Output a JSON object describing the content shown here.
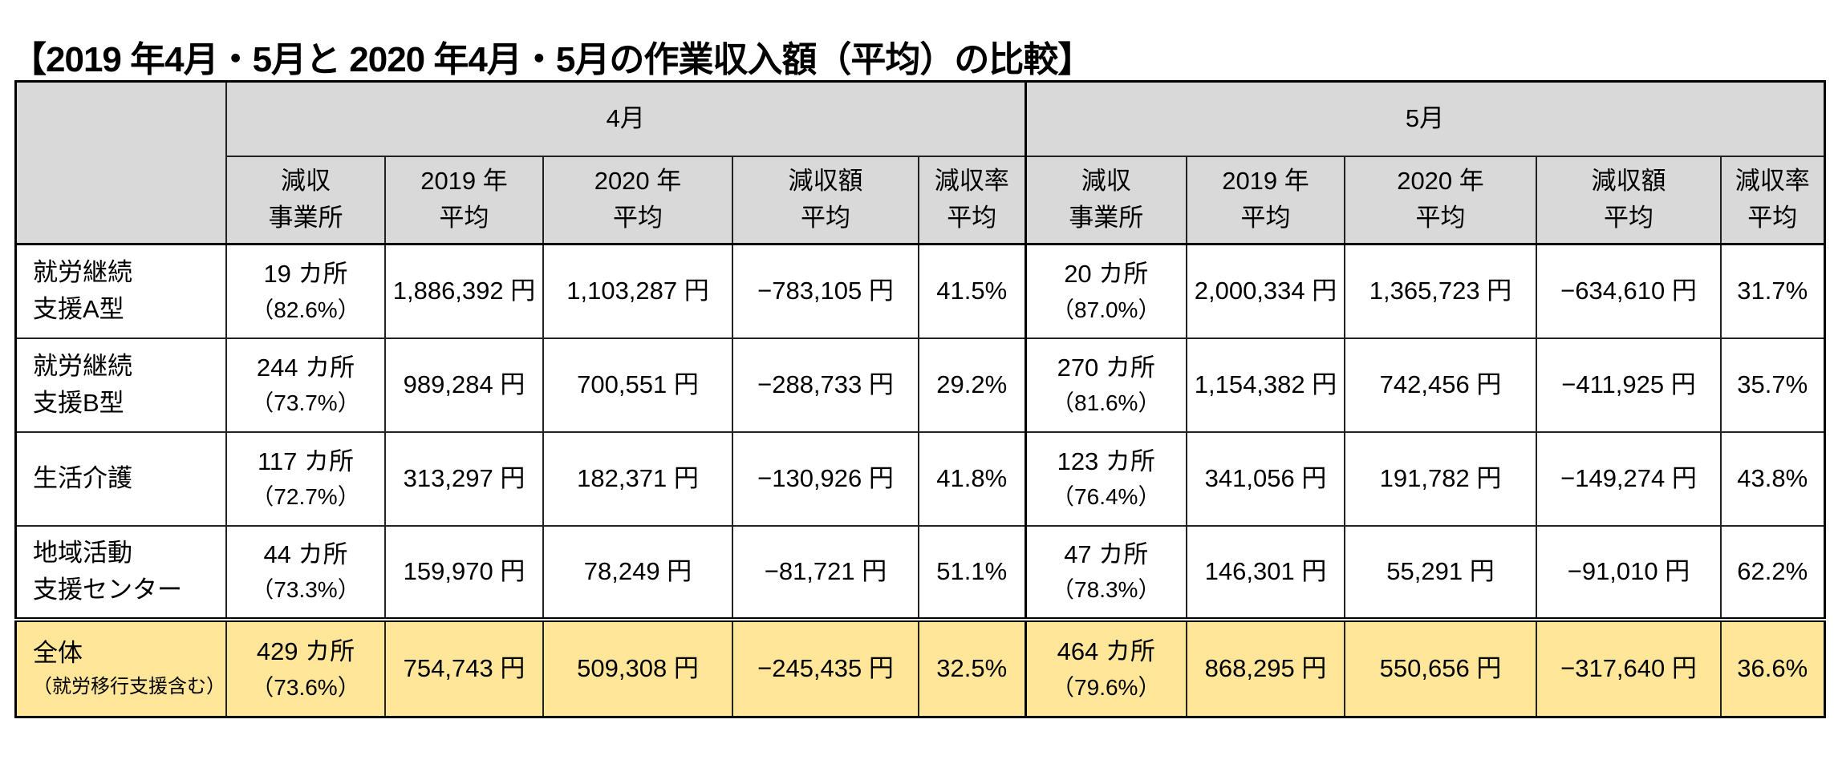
{
  "title": "【2019 年4月・5月と 2020 年4月・5月の作業収入額（平均）の比較】",
  "months": [
    "4月",
    "5月"
  ],
  "column_headers": [
    [
      "減収",
      "事業所"
    ],
    [
      "2019 年",
      "平均"
    ],
    [
      "2020 年",
      "平均"
    ],
    [
      "減収額",
      "平均"
    ],
    [
      "減収率",
      "平均"
    ]
  ],
  "rows": [
    {
      "label": [
        "就労継続",
        "支援A型"
      ],
      "apr": {
        "count": "19 カ所",
        "pct": "（82.6%）",
        "y2019": "1,886,392 円",
        "y2020": "1,103,287 円",
        "diff": "−783,105 円",
        "rate": "41.5%"
      },
      "may": {
        "count": "20 カ所",
        "pct": "（87.0%）",
        "y2019": "2,000,334 円",
        "y2020": "1,365,723 円",
        "diff": "−634,610 円",
        "rate": "31.7%"
      }
    },
    {
      "label": [
        "就労継続",
        "支援B型"
      ],
      "apr": {
        "count": "244 カ所",
        "pct": "（73.7%）",
        "y2019": "989,284 円",
        "y2020": "700,551 円",
        "diff": "−288,733 円",
        "rate": "29.2%"
      },
      "may": {
        "count": "270 カ所",
        "pct": "（81.6%）",
        "y2019": "1,154,382 円",
        "y2020": "742,456 円",
        "diff": "−411,925 円",
        "rate": "35.7%"
      }
    },
    {
      "label": [
        "生活介護",
        ""
      ],
      "apr": {
        "count": "117 カ所",
        "pct": "（72.7%）",
        "y2019": "313,297 円",
        "y2020": "182,371 円",
        "diff": "−130,926 円",
        "rate": "41.8%"
      },
      "may": {
        "count": "123 カ所",
        "pct": "（76.4%）",
        "y2019": "341,056 円",
        "y2020": "191,782 円",
        "diff": "−149,274 円",
        "rate": "43.8%"
      }
    },
    {
      "label": [
        "地域活動",
        "支援センター"
      ],
      "apr": {
        "count": "44 カ所",
        "pct": "（73.3%）",
        "y2019": "159,970 円",
        "y2020": "78,249 円",
        "diff": "−81,721 円",
        "rate": "51.1%"
      },
      "may": {
        "count": "47 カ所",
        "pct": "（78.3%）",
        "y2019": "146,301 円",
        "y2020": "55,291 円",
        "diff": "−91,010 円",
        "rate": "62.2%"
      }
    }
  ],
  "total": {
    "label": "全体",
    "note": "（就労移行支援含む）",
    "apr": {
      "count": "429 カ所",
      "pct": "（73.6%）",
      "y2019": "754,743 円",
      "y2020": "509,308 円",
      "diff": "−245,435 円",
      "rate": "32.5%"
    },
    "may": {
      "count": "464 カ所",
      "pct": "（79.6%）",
      "y2019": "868,295 円",
      "y2020": "550,656 円",
      "diff": "−317,640 円",
      "rate": "36.6%"
    }
  },
  "colors": {
    "header_bg": "#d9d9d9",
    "total_bg": "#ffe699"
  }
}
